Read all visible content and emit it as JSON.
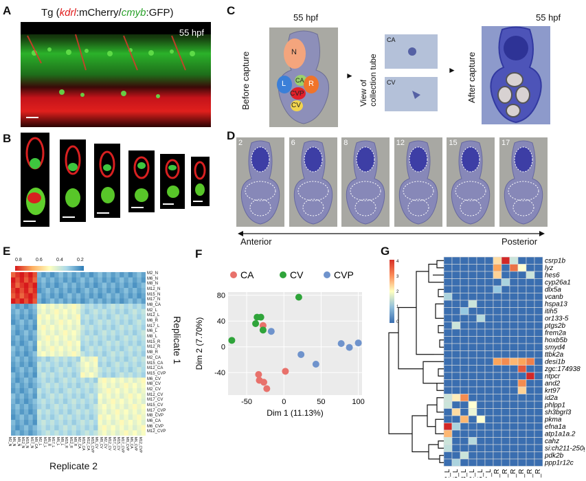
{
  "panels": {
    "A": "A",
    "B": "B",
    "C": "C",
    "D": "D",
    "E": "E",
    "F": "F",
    "G": "G"
  },
  "panelA": {
    "title_prefix": "Tg (",
    "title_kdrl": "kdrl",
    "title_mcherry": ":mCherry/",
    "title_cmyb": "cmyb",
    "title_gfp": ":GFP)",
    "stage": "55 hpf",
    "colors": {
      "red": "#e01c1c",
      "green": "#2ec62e"
    }
  },
  "panelC": {
    "stage_left": "55 hpf",
    "stage_right": "55 hpf",
    "before": "Before capture",
    "view": "View of",
    "view2": "collection tube",
    "after": "After capture",
    "regions": {
      "N": "N",
      "L": "L",
      "CA": "CA",
      "R": "R",
      "CVP": "CVP",
      "CV": "CV"
    },
    "tube_labels": [
      "CA",
      "CV"
    ],
    "region_colors": {
      "N": "#f4a57d",
      "L": "#3b7fd8",
      "CA": "#9bd16b",
      "R": "#f0742a",
      "CVP": "#e0202a",
      "CV": "#f2d44d"
    }
  },
  "panelD": {
    "section_numbers": [
      "2",
      "6",
      "8",
      "12",
      "15",
      "17"
    ],
    "anterior": "Anterior",
    "posterior": "Posterior"
  },
  "panelE": {
    "legend_ticks": [
      "0.8",
      "0.6",
      "0.4",
      "0.2"
    ],
    "row_labels": [
      "M2_N",
      "M6_N",
      "M8_N",
      "M12_N",
      "M15_N",
      "M17_N",
      "M8_CA",
      "M2_L",
      "M12_L",
      "M6_R",
      "M17_L",
      "M6_L",
      "M8_L",
      "M15_R",
      "M12_R",
      "M8_R",
      "M2_CA",
      "M15_CA",
      "M12_CA",
      "M15_CVP",
      "M6_CV",
      "M8_CV",
      "M2_CV",
      "M12_CV",
      "M17_CV",
      "M15_CV",
      "M17_CVP",
      "M8_CVP",
      "M6_CA",
      "M6_CVP",
      "M12_CVP"
    ],
    "xlabel": "Replicate 2",
    "ylabel": "Replicate 1"
  },
  "panelG": {
    "genes": [
      "csrp1b",
      "lyz",
      "hes6",
      "cyp26a1",
      "dlx5a",
      "vcanb",
      "hspa13",
      "itih5",
      "or133-5",
      "ptgs2b",
      "frem2a",
      "hoxb5b",
      "smyd4",
      "ttbk2a",
      "desi1b",
      "zgc:174938",
      "ntpcr",
      "and2",
      "krt97",
      "id2a",
      "phlpp1",
      "sh3bgrl3",
      "pkma",
      "efna1a",
      "atp1a1a.2",
      "cahz",
      "si:ch211-250g4.3",
      "pdk2b",
      "ppp1r12c"
    ],
    "samples": [
      "M2_L",
      "M6_L",
      "M8_L",
      "M12_L",
      "M15_L",
      "M17_L",
      "M2_R",
      "M6_R",
      "M8_R",
      "M12_R",
      "M15_R",
      "M17_R"
    ],
    "legend_ticks": [
      "4",
      "3",
      "2",
      "1",
      "0"
    ],
    "hot_cells": [
      [
        0,
        6,
        2.4
      ],
      [
        0,
        7,
        4
      ],
      [
        0,
        8,
        1.5
      ],
      [
        1,
        6,
        3
      ],
      [
        1,
        8,
        3.4
      ],
      [
        1,
        9,
        2
      ],
      [
        2,
        6,
        2.5
      ],
      [
        2,
        10,
        1.5
      ],
      [
        3,
        7,
        1.2
      ],
      [
        4,
        6,
        1
      ],
      [
        5,
        0,
        1.2
      ],
      [
        6,
        3,
        1.5
      ],
      [
        7,
        2,
        1
      ],
      [
        8,
        4,
        1.3
      ],
      [
        9,
        1,
        1.5
      ],
      [
        14,
        6,
        3
      ],
      [
        14,
        7,
        3.2
      ],
      [
        14,
        8,
        2.8
      ],
      [
        14,
        9,
        3
      ],
      [
        14,
        10,
        3.3
      ],
      [
        15,
        9,
        3.6
      ],
      [
        16,
        10,
        4
      ],
      [
        17,
        9,
        3.2
      ],
      [
        18,
        9,
        2.5
      ],
      [
        19,
        0,
        1.5
      ],
      [
        19,
        1,
        2.2
      ],
      [
        19,
        2,
        3.2
      ],
      [
        20,
        0,
        1.5
      ],
      [
        20,
        3,
        2
      ],
      [
        21,
        1,
        2.4
      ],
      [
        21,
        3,
        1.8
      ],
      [
        22,
        2,
        2.8
      ],
      [
        22,
        4,
        2
      ],
      [
        23,
        0,
        4.2
      ],
      [
        23,
        1,
        1.2
      ],
      [
        24,
        0,
        2.8
      ],
      [
        25,
        0,
        1.5
      ],
      [
        25,
        3,
        1.3
      ],
      [
        26,
        0,
        1.4
      ],
      [
        27,
        2,
        1.5
      ],
      [
        28,
        1,
        1.2
      ]
    ]
  },
  "chart_data": {
    "type": "scatter",
    "xlabel": "Dim 1 (11.13%)",
    "ylabel": "Dim 2 (7.70%)",
    "xlim": [
      -75,
      105
    ],
    "ylim": [
      -75,
      85
    ],
    "xticks": [
      "-50",
      "0",
      "50",
      "100"
    ],
    "yticks": [
      "80",
      "40",
      "0",
      "-40"
    ],
    "legend_position": "top",
    "series": [
      {
        "name": "CA",
        "color": "#e8716b",
        "points": [
          [
            -28,
            33
          ],
          [
            -34,
            -43
          ],
          [
            -33,
            -52
          ],
          [
            -27,
            -55
          ],
          [
            -23,
            -65
          ],
          [
            2,
            -38
          ]
        ]
      },
      {
        "name": "CV",
        "color": "#2fa43a",
        "points": [
          [
            -70,
            10
          ],
          [
            -38,
            36
          ],
          [
            -36,
            46
          ],
          [
            -31,
            46
          ],
          [
            -28,
            26
          ],
          [
            20,
            77
          ]
        ]
      },
      {
        "name": "CVP",
        "color": "#6f93cc",
        "points": [
          [
            -17,
            24
          ],
          [
            23,
            -12
          ],
          [
            43,
            -27
          ],
          [
            77,
            5
          ],
          [
            88,
            -1
          ],
          [
            100,
            6
          ]
        ]
      }
    ]
  }
}
